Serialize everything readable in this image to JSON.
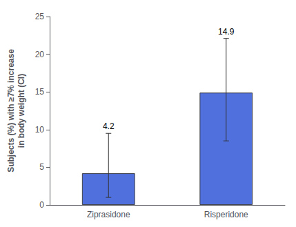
{
  "chart_data": {
    "type": "bar",
    "categories": [
      "Ziprasidone",
      "Risperidone"
    ],
    "values": [
      4.2,
      14.9
    ],
    "error_lower": [
      3.2,
      6.4
    ],
    "error_upper": [
      5.3,
      7.2
    ],
    "ylabel": "Subjects (%) with ≥7% increase\nin body weight (CI)",
    "ylim": [
      0,
      25
    ],
    "yticks": [
      0,
      5,
      10,
      15,
      20,
      25
    ],
    "grid": false,
    "data_labels": true
  }
}
